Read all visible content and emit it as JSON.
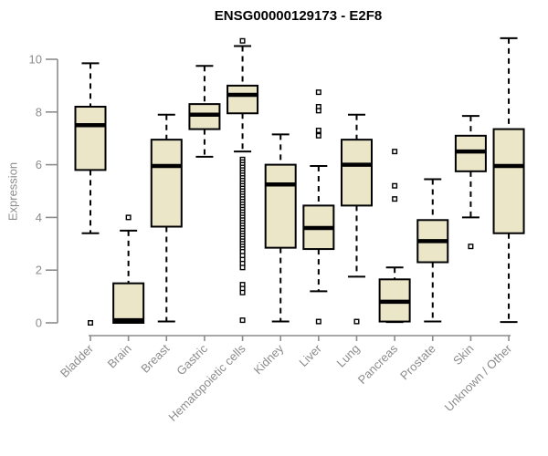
{
  "chart_data": {
    "type": "boxplot",
    "title": "ENSG00000129173 - E2F8",
    "ylabel": "Expression",
    "xlabel": "",
    "ylim": [
      0,
      10.9
    ],
    "yticks": [
      0,
      2,
      4,
      6,
      8,
      10
    ],
    "grid": false,
    "legend": "none",
    "box_fill_color": "#ece6c8",
    "box_border_color": "#000000",
    "median_color": "#000000",
    "whisker_color": "#000000",
    "outlier_color": "#000000",
    "axis_color": "#8c8c8c",
    "label_color": "#8c8c8c",
    "title_color": "#000000",
    "categories": [
      "Bladder",
      "Brain",
      "Breast",
      "Gastric",
      "Hematopoietic cells",
      "Kidney",
      "Liver",
      "Lung",
      "Pancreas",
      "Prostate",
      "Skin",
      "Unknown / Other"
    ],
    "series": [
      {
        "name": "Bladder",
        "whisker_low": 3.4,
        "q1": 5.8,
        "median": 7.5,
        "q3": 8.2,
        "whisker_high": 9.85,
        "outliers": [
          0.0
        ]
      },
      {
        "name": "Brain",
        "whisker_low": 0.0,
        "q1": 0.0,
        "median": 0.1,
        "q3": 1.5,
        "whisker_high": 3.5,
        "outliers": [
          4.0
        ]
      },
      {
        "name": "Breast",
        "whisker_low": 0.05,
        "q1": 3.65,
        "median": 5.95,
        "q3": 6.95,
        "whisker_high": 7.9,
        "outliers": []
      },
      {
        "name": "Gastric",
        "whisker_low": 6.3,
        "q1": 7.35,
        "median": 7.9,
        "q3": 8.3,
        "whisker_high": 9.75,
        "outliers": []
      },
      {
        "name": "Hematopoietic cells",
        "whisker_low": 6.5,
        "q1": 7.95,
        "median": 8.65,
        "q3": 9.0,
        "whisker_high": 10.5,
        "outliers": [
          10.7,
          6.2,
          6.1,
          6.0,
          5.9,
          5.8,
          5.7,
          5.6,
          5.5,
          5.4,
          5.3,
          5.2,
          5.1,
          5.0,
          4.9,
          4.8,
          4.7,
          4.6,
          4.5,
          4.4,
          4.3,
          4.2,
          4.1,
          4.0,
          3.9,
          3.8,
          3.7,
          3.6,
          3.5,
          3.4,
          3.3,
          3.2,
          3.1,
          3.0,
          2.9,
          2.8,
          2.7,
          2.55,
          2.4,
          2.25,
          2.1,
          1.45,
          1.3,
          1.15,
          0.1
        ]
      },
      {
        "name": "Kidney",
        "whisker_low": 0.05,
        "q1": 2.85,
        "median": 5.25,
        "q3": 6.0,
        "whisker_high": 7.15,
        "outliers": []
      },
      {
        "name": "Liver",
        "whisker_low": 1.2,
        "q1": 2.8,
        "median": 3.6,
        "q3": 4.45,
        "whisker_high": 5.95,
        "outliers": [
          8.75,
          8.2,
          8.05,
          7.3,
          7.1,
          0.05
        ]
      },
      {
        "name": "Lung",
        "whisker_low": 1.75,
        "q1": 4.45,
        "median": 6.0,
        "q3": 6.95,
        "whisker_high": 7.9,
        "outliers": [
          0.05
        ]
      },
      {
        "name": "Pancreas",
        "whisker_low": 0.03,
        "q1": 0.05,
        "median": 0.8,
        "q3": 1.65,
        "whisker_high": 2.1,
        "outliers": [
          6.5,
          5.2,
          4.7
        ]
      },
      {
        "name": "Prostate",
        "whisker_low": 0.05,
        "q1": 2.3,
        "median": 3.1,
        "q3": 3.9,
        "whisker_high": 5.45,
        "outliers": []
      },
      {
        "name": "Skin",
        "whisker_low": 4.0,
        "q1": 5.75,
        "median": 6.5,
        "q3": 7.1,
        "whisker_high": 7.85,
        "outliers": [
          2.9
        ]
      },
      {
        "name": "Unknown / Other",
        "whisker_low": 0.03,
        "q1": 3.4,
        "median": 5.95,
        "q3": 7.35,
        "whisker_high": 10.8,
        "outliers": []
      }
    ]
  }
}
